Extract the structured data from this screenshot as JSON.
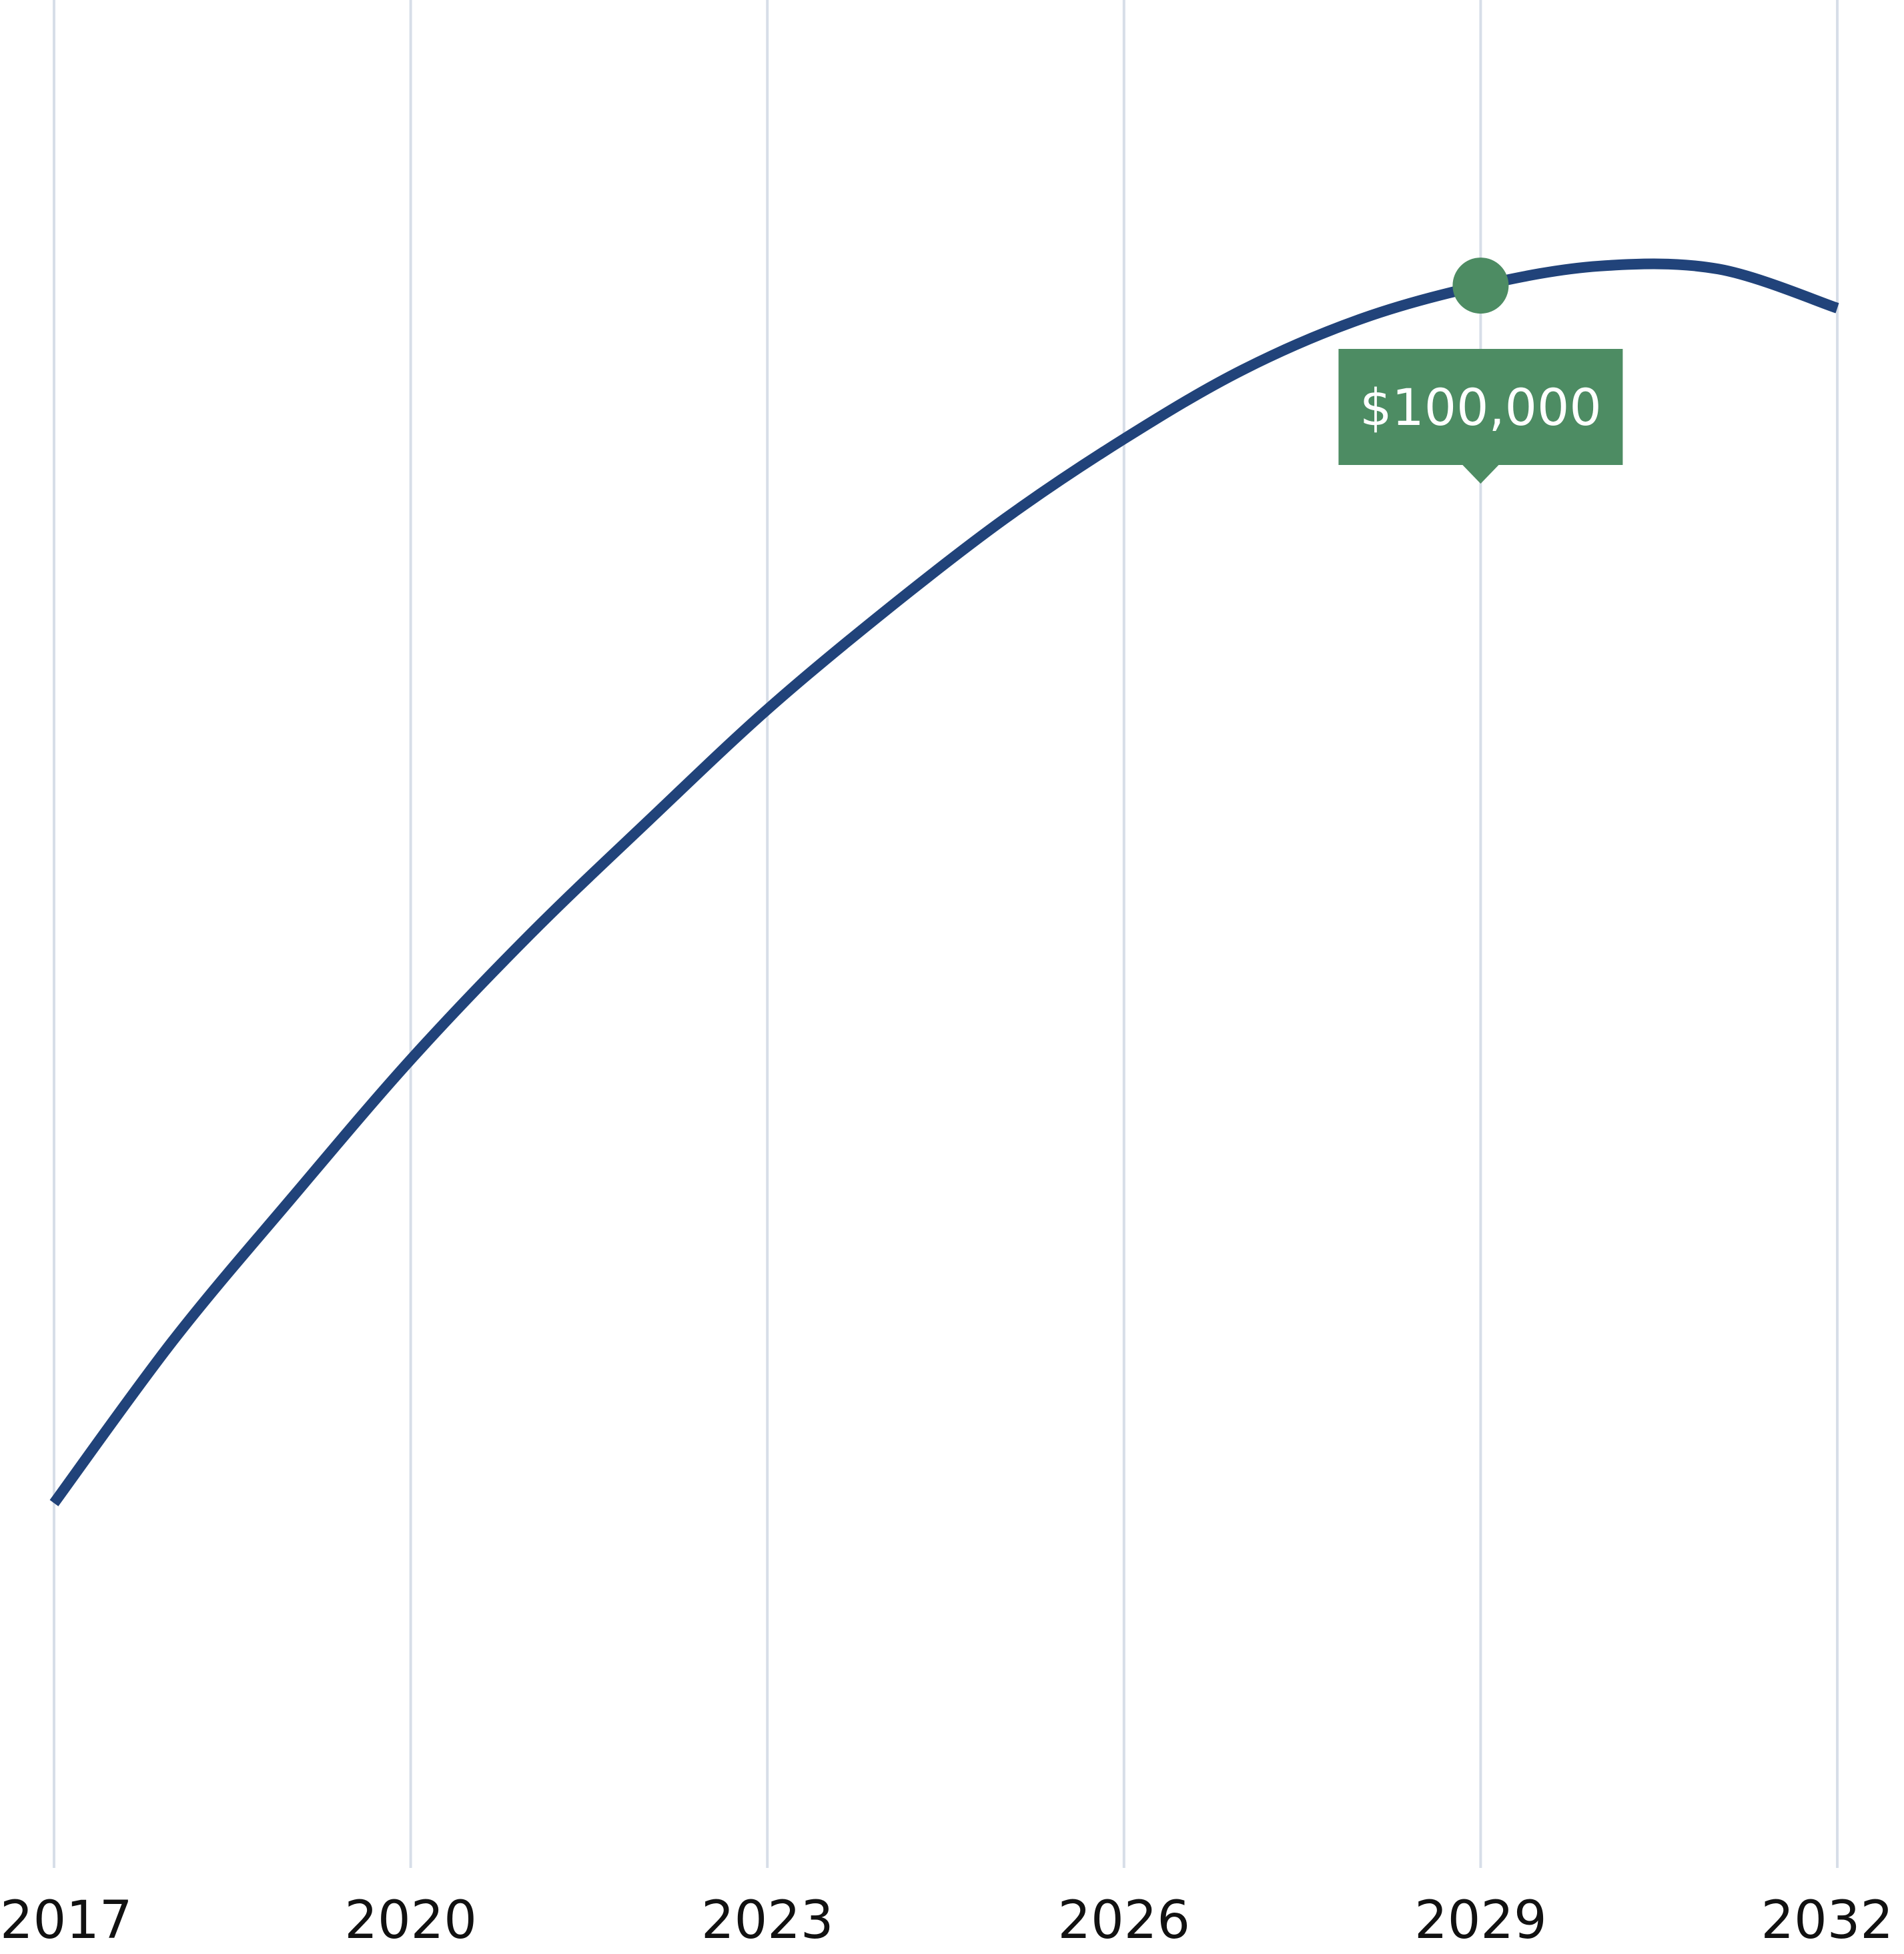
{
  "chart_data": {
    "type": "line",
    "title": "",
    "xlabel": "",
    "ylabel": "",
    "x_ticks": [
      "2017",
      "2020",
      "2023",
      "2026",
      "2029",
      "2032"
    ],
    "xlim": [
      2017,
      2032
    ],
    "ylim": [
      0,
      130000
    ],
    "grid": {
      "vertical": true,
      "horizontal": false
    },
    "legend": "none",
    "series": [
      {
        "x": [
          2017,
          2018,
          2019,
          2020,
          2021,
          2022,
          2023,
          2024,
          2025,
          2026,
          2027,
          2028,
          2029,
          2030,
          2031,
          2032
        ],
        "y": [
          30000,
          40800,
          50300,
          59500,
          67800,
          75400,
          82800,
          89400,
          95500,
          100800,
          105400,
          108800,
          111000,
          112300,
          112100,
          109500
        ],
        "color": "#21437a"
      }
    ],
    "highlight": {
      "x": 2029,
      "y": 111000,
      "label": "$100,000",
      "color": "#4d8c63"
    },
    "colors": {
      "grid": "#d7dee8",
      "line": "#21437a",
      "accent": "#4d8c63",
      "tick_text": "#111111"
    }
  }
}
